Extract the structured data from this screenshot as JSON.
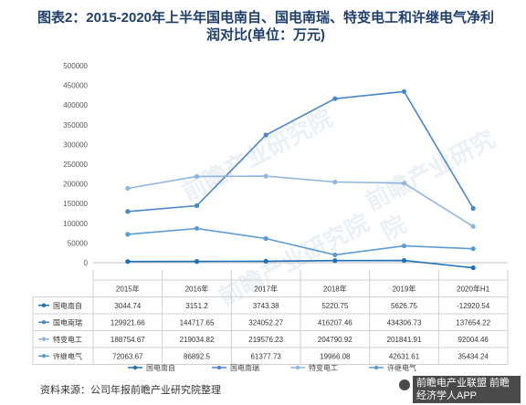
{
  "header": {
    "title": "图表2：2015-2020年上半年国电南自、国电南瑞、特变电工和许继电气净利润对比(单位：万元)"
  },
  "footer": {
    "source": "资料来源：公司年报前瞻产业研究院整理",
    "brand": "前瞻电产业联盟 前瞻经济学人APP"
  },
  "watermark": {
    "text": "前瞻产业研究院"
  },
  "chart_data": {
    "type": "line",
    "title": "图表2：2015-2020年上半年国电南自、国电南瑞、特变电工和许继电气净利润对比(单位：万元)",
    "categories": [
      "2015年",
      "2016年",
      "2017年",
      "2018年",
      "2019年",
      "2020年H1"
    ],
    "ylim": [
      -50000,
      500000
    ],
    "yticks": [
      0,
      50000,
      100000,
      150000,
      200000,
      250000,
      300000,
      350000,
      400000,
      450000,
      500000
    ],
    "ytick_labels": [
      "0",
      "50000",
      "100000",
      "150000",
      "200000",
      "250000",
      "300000",
      "350000",
      "400000",
      "450000",
      "500000"
    ],
    "grid": false,
    "legend_position": "bottom",
    "series": [
      {
        "name": "国电南自",
        "color": "#1f6fb5",
        "values": [
          3044.74,
          3151.2,
          3743.38,
          5220.75,
          5626.75,
          -12920.54
        ],
        "labels": [
          "3044.74",
          "3151.2",
          "3743.38",
          "5220.75",
          "5626.75",
          "-12920.54"
        ]
      },
      {
        "name": "国电南瑞",
        "color": "#4a86c8",
        "values": [
          129921.66,
          144717.65,
          324052.27,
          416207.46,
          434306.73,
          137654.22
        ],
        "labels": [
          "129921.66",
          "144717.65",
          "324052.27",
          "416207.46",
          "434306.73",
          "137654.22"
        ]
      },
      {
        "name": "特变电工",
        "color": "#8fb6de",
        "values": [
          188754.67,
          219034.82,
          219576.23,
          204790.92,
          201841.91,
          92004.46
        ],
        "labels": [
          "188754.67",
          "219034.82",
          "219576.23",
          "204790.92",
          "201841.91",
          "92004.46"
        ]
      },
      {
        "name": "许继电气",
        "color": "#5b9bd5",
        "values": [
          72063.67,
          86892.5,
          61377.73,
          19966.08,
          42631.61,
          35434.24
        ],
        "labels": [
          "72063.67",
          "86892.5",
          "61377.73",
          "19966.08",
          "42631.61",
          "35434.24"
        ]
      }
    ]
  }
}
